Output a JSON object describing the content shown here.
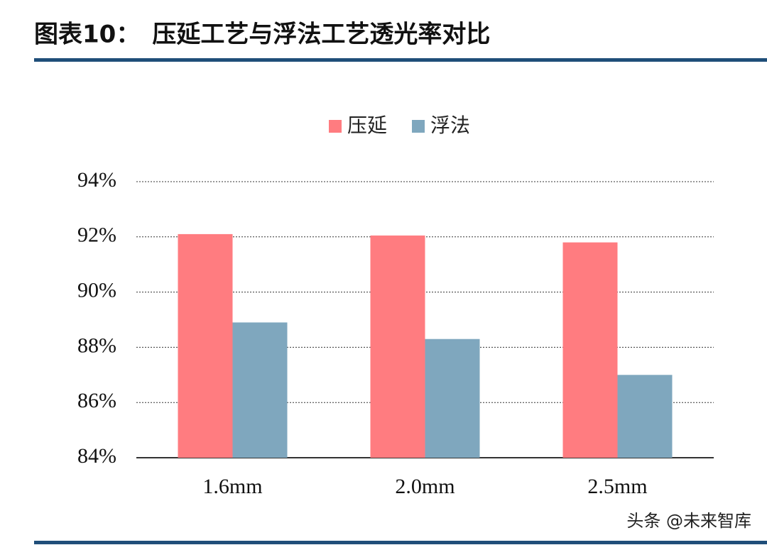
{
  "chart_data": {
    "type": "bar",
    "title": "图表10：　压延工艺与浮法工艺透光率对比",
    "categories": [
      "1.6mm",
      "2.0mm",
      "2.5mm"
    ],
    "series": [
      {
        "name": "压延",
        "color": "#ff7c80",
        "values": [
          92.1,
          92.05,
          91.8
        ]
      },
      {
        "name": "浮法",
        "color": "#7fa7be",
        "values": [
          88.9,
          88.3,
          87.0
        ]
      }
    ],
    "ylim": [
      84,
      94
    ],
    "yticks": [
      {
        "value": 84,
        "label": "84%"
      },
      {
        "value": 86,
        "label": "86%"
      },
      {
        "value": 88,
        "label": "88%"
      },
      {
        "value": 90,
        "label": "90%"
      },
      {
        "value": 92,
        "label": "92%"
      },
      {
        "value": 94,
        "label": "94%"
      }
    ],
    "grid": true,
    "legend": "top",
    "watermark": "头条 @未来智库"
  }
}
